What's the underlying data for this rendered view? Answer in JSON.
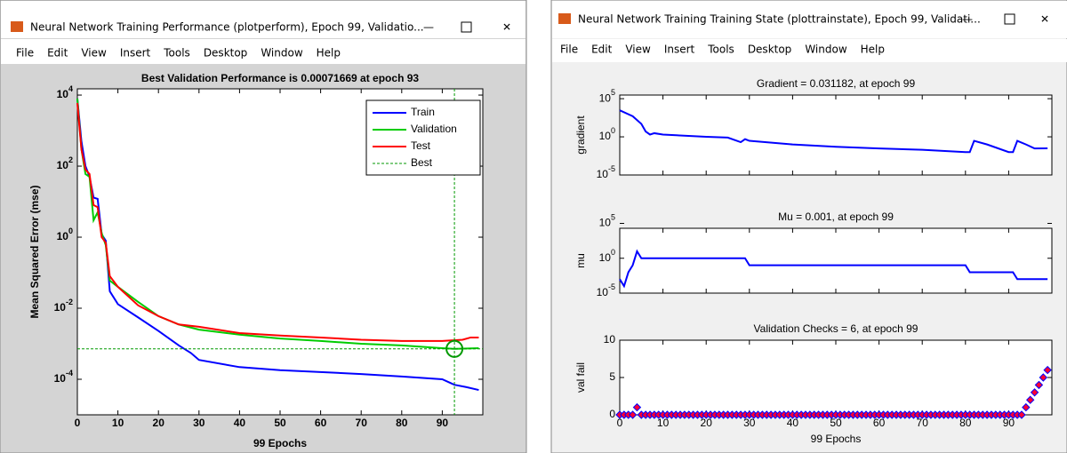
{
  "windows": [
    {
      "title": "Neural Network Training Performance (plotperform), Epoch 99, Validatio...",
      "menu": [
        "File",
        "Edit",
        "View",
        "Insert",
        "Tools",
        "Desktop",
        "Window",
        "Help"
      ],
      "chart_data": {
        "type": "line",
        "title": "Best Validation Performance is 0.00071669 at epoch 93",
        "xlabel": "99 Epochs",
        "ylabel": "Mean Squared Error  (mse)",
        "ylog": true,
        "legend": "upper right",
        "xlim": [
          0,
          100
        ],
        "xticks": [
          0,
          10,
          20,
          30,
          40,
          50,
          60,
          70,
          80,
          90
        ],
        "ylim": [
          1e-05,
          15000
        ],
        "yticks": [
          {
            "value": 0.0001,
            "label": "10^-4"
          },
          {
            "value": 0.01,
            "label": "10^-2"
          },
          {
            "value": 1,
            "label": "10^0"
          },
          {
            "value": 100,
            "label": "10^2"
          },
          {
            "value": 10000,
            "label": "10^4"
          }
        ],
        "series": [
          {
            "name": "Train",
            "color": "#0000ff",
            "x": [
              0,
              1,
              2,
              3,
              4,
              5,
              6,
              7,
              8,
              10,
              15,
              20,
              25,
              28,
              30,
              40,
              50,
              60,
              70,
              80,
              90,
              93,
              96,
              99
            ],
            "values": [
              8000,
              500,
              100,
              50,
              13,
              12,
              1.2,
              0.8,
              0.03,
              0.013,
              0.0055,
              0.0023,
              0.0009,
              0.00055,
              0.00035,
              0.00022,
              0.00018,
              0.00016,
              0.00014,
              0.00012,
              0.0001,
              7e-05,
              6e-05,
              5e-05
            ]
          },
          {
            "name": "Validation",
            "color": "#00cc00",
            "x": [
              0,
              1,
              2,
              3,
              4,
              5,
              6,
              7,
              8,
              10,
              15,
              20,
              25,
              30,
              40,
              50,
              60,
              70,
              80,
              90,
              93,
              99
            ],
            "values": [
              8000,
              300,
              60,
              50,
              3,
              5,
              1.3,
              0.6,
              0.06,
              0.04,
              0.015,
              0.006,
              0.0035,
              0.0025,
              0.0018,
              0.0014,
              0.0012,
              0.001,
              0.0009,
              0.00075,
              0.00071669,
              0.00075
            ]
          },
          {
            "name": "Test",
            "color": "#ff0000",
            "x": [
              0,
              1,
              2,
              3,
              4,
              5,
              6,
              7,
              8,
              10,
              15,
              20,
              25,
              30,
              40,
              50,
              60,
              70,
              80,
              90,
              95,
              97,
              99
            ],
            "values": [
              6000,
              300,
              80,
              60,
              8,
              7,
              1,
              0.7,
              0.08,
              0.04,
              0.012,
              0.006,
              0.0035,
              0.003,
              0.002,
              0.0017,
              0.0015,
              0.0013,
              0.0012,
              0.0012,
              0.0013,
              0.0015,
              0.0015
            ]
          }
        ],
        "best": {
          "name": "Best",
          "color": "#009900",
          "x": 93,
          "y": 0.00071669
        }
      }
    },
    {
      "title": "Neural Network Training Training State (plottrainstate), Epoch 99, Validati...",
      "menu": [
        "File",
        "Edit",
        "View",
        "Insert",
        "Tools",
        "Desktop",
        "Window",
        "Help"
      ],
      "chart_data": [
        {
          "type": "line",
          "title": "Gradient = 0.031182, at epoch 99",
          "ylabel": "gradient",
          "ylog": true,
          "xlim": [
            0,
            100
          ],
          "ylim": [
            1e-05,
            300000
          ],
          "yticks": [
            {
              "value": 1e-05,
              "label": "10^-5"
            },
            {
              "value": 1,
              "label": "10^0"
            },
            {
              "value": 100000,
              "label": "10^5"
            }
          ],
          "series": [
            {
              "color": "#0000ff",
              "x": [
                0,
                3,
                5,
                6,
                7,
                8,
                10,
                20,
                25,
                28,
                29,
                30,
                40,
                50,
                60,
                70,
                80,
                81,
                82,
                85,
                90,
                91,
                92,
                94,
                96,
                99
              ],
              "values": [
                3000,
                500,
                50,
                5,
                2,
                3,
                2,
                1,
                0.8,
                0.2,
                0.5,
                0.3,
                0.1,
                0.05,
                0.03,
                0.02,
                0.01,
                0.01,
                0.3,
                0.1,
                0.01,
                0.01,
                0.3,
                0.1,
                0.03,
                0.031182
              ]
            }
          ]
        },
        {
          "type": "line",
          "title": "Mu = 0.001, at epoch 99",
          "ylabel": "mu",
          "ylog": true,
          "xlim": [
            0,
            100
          ],
          "ylim": [
            1e-05,
            20000
          ],
          "yticks": [
            {
              "value": 1e-05,
              "label": "10^-5"
            },
            {
              "value": 1,
              "label": "10^0"
            },
            {
              "value": 100000,
              "label": "10^5"
            }
          ],
          "series": [
            {
              "color": "#0000ff",
              "x": [
                0,
                1,
                2,
                3,
                4,
                5,
                29,
                30,
                80,
                81,
                91,
                92,
                99
              ],
              "values": [
                0.001,
                0.0001,
                0.01,
                0.1,
                10,
                1,
                1,
                0.1,
                0.1,
                0.01,
                0.01,
                0.001,
                0.001
              ]
            }
          ]
        },
        {
          "type": "scatter",
          "title": "Validation Checks = 6, at epoch 99",
          "ylabel": "val fail",
          "xlabel": "99 Epochs",
          "xlim": [
            0,
            100
          ],
          "xticks": [
            0,
            10,
            20,
            30,
            40,
            50,
            60,
            70,
            80,
            90
          ],
          "ylim": [
            0,
            10
          ],
          "yticks": [
            0,
            5,
            10
          ],
          "series": [
            {
              "color": "#ff0033",
              "edge": "#0000ff",
              "values": [
                0,
                0,
                0,
                0,
                1,
                0,
                0,
                0,
                0,
                0,
                0,
                0,
                0,
                0,
                0,
                0,
                0,
                0,
                0,
                0,
                0,
                0,
                0,
                0,
                0,
                0,
                0,
                0,
                0,
                0,
                0,
                0,
                0,
                0,
                0,
                0,
                0,
                0,
                0,
                0,
                0,
                0,
                0,
                0,
                0,
                0,
                0,
                0,
                0,
                0,
                0,
                0,
                0,
                0,
                0,
                0,
                0,
                0,
                0,
                0,
                0,
                0,
                0,
                0,
                0,
                0,
                0,
                0,
                0,
                0,
                0,
                0,
                0,
                0,
                0,
                0,
                0,
                0,
                0,
                0,
                0,
                0,
                0,
                0,
                0,
                0,
                0,
                0,
                0,
                0,
                0,
                0,
                0,
                0,
                1,
                2,
                3,
                4,
                5,
                6
              ]
            }
          ]
        }
      ]
    }
  ]
}
